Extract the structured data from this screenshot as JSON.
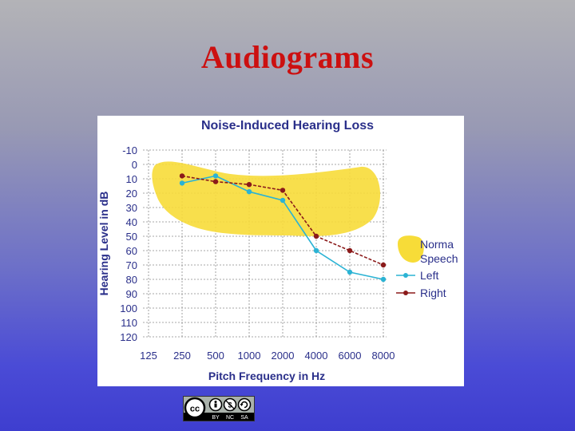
{
  "slide": {
    "title": "Audiograms"
  },
  "chart_data": {
    "type": "line",
    "title": "Noise-Induced Hearing Loss",
    "xlabel": "Pitch Frequency in Hz",
    "ylabel": "Hearing Level in dB",
    "categories": [
      "125",
      "250",
      "500",
      "1000",
      "2000",
      "4000",
      "6000",
      "8000"
    ],
    "y_ticks": [
      "-10",
      "0",
      "10",
      "20",
      "30",
      "40",
      "50",
      "60",
      "70",
      "80",
      "90",
      "100",
      "110",
      "120"
    ],
    "ylim": [
      -10,
      120
    ],
    "y_inverted": true,
    "grid": true,
    "legend_position": "right",
    "series": [
      {
        "name": "Left",
        "color": "#2bb3d4",
        "values": [
          null,
          13,
          8,
          19,
          25,
          60,
          75,
          80
        ]
      },
      {
        "name": "Right",
        "color": "#8b1a1a",
        "values": [
          null,
          8,
          12,
          14,
          18,
          50,
          60,
          70
        ]
      }
    ],
    "shaded_region": {
      "name": "Norma Speech",
      "color": "#f7dc38"
    }
  },
  "license_badge": {
    "labels": [
      "BY",
      "NC",
      "SA"
    ]
  }
}
